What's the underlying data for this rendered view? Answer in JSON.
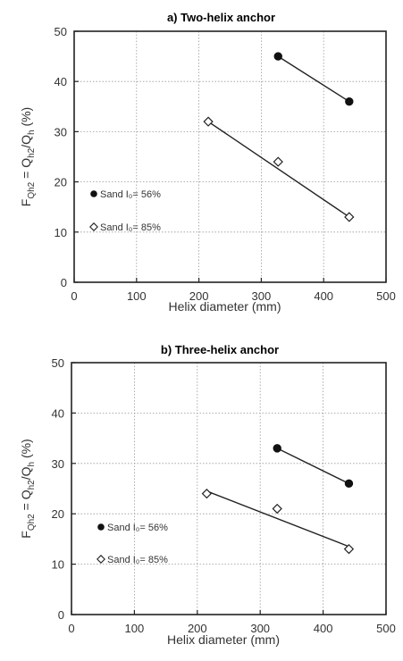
{
  "chart_data": [
    {
      "type": "scatter",
      "title": "a) Two-helix anchor",
      "xlabel": "Helix diameter (mm)",
      "ylabel": "F",
      "ylabel_sub": "Qh2",
      "ylabel_rest": " = Q",
      "ylabel_sub2": "h2",
      "ylabel_rest2": "/Q",
      "ylabel_sub3": "h",
      "ylabel_unit": " (%)",
      "xlim": [
        0,
        500
      ],
      "ylim": [
        0,
        50
      ],
      "xticks": [
        0,
        100,
        200,
        300,
        400,
        500
      ],
      "yticks": [
        0,
        10,
        20,
        30,
        40,
        50
      ],
      "grid": true,
      "series": [
        {
          "name": "Sand I₀= 56%",
          "marker": "filled-circle",
          "points": [
            [
              327,
              45
            ],
            [
              441,
              36
            ]
          ],
          "fit": [
            [
              327,
              45
            ],
            [
              441,
              36
            ]
          ]
        },
        {
          "name": "Sand I₀= 85%",
          "marker": "open-diamond",
          "points": [
            [
              215,
              32
            ],
            [
              327,
              24
            ],
            [
              441,
              13
            ]
          ],
          "fit": [
            [
              215,
              32
            ],
            [
              441,
              13
            ]
          ]
        }
      ]
    },
    {
      "type": "scatter",
      "title": "b) Three-helix anchor",
      "xlabel": "Helix diameter (mm)",
      "ylabel": "F",
      "ylabel_sub": "Qh2",
      "ylabel_rest": " = Q",
      "ylabel_sub2": "h2",
      "ylabel_rest2": "/Q",
      "ylabel_sub3": "h",
      "ylabel_unit": "  (%)",
      "xlim": [
        0,
        500
      ],
      "ylim": [
        0,
        50
      ],
      "xticks": [
        0,
        100,
        200,
        300,
        400,
        500
      ],
      "yticks": [
        0,
        10,
        20,
        30,
        40,
        50
      ],
      "grid": true,
      "series": [
        {
          "name": "Sand I₀= 56%",
          "marker": "filled-circle",
          "points": [
            [
              327,
              33
            ],
            [
              441,
              26
            ]
          ],
          "fit": [
            [
              327,
              33
            ],
            [
              441,
              26
            ]
          ]
        },
        {
          "name": "Sand I₀= 85%",
          "marker": "open-diamond",
          "points": [
            [
              215,
              24
            ],
            [
              327,
              21
            ],
            [
              441,
              13
            ]
          ],
          "fit": [
            [
              215,
              24.5
            ],
            [
              441,
              13.5
            ]
          ]
        }
      ]
    }
  ]
}
